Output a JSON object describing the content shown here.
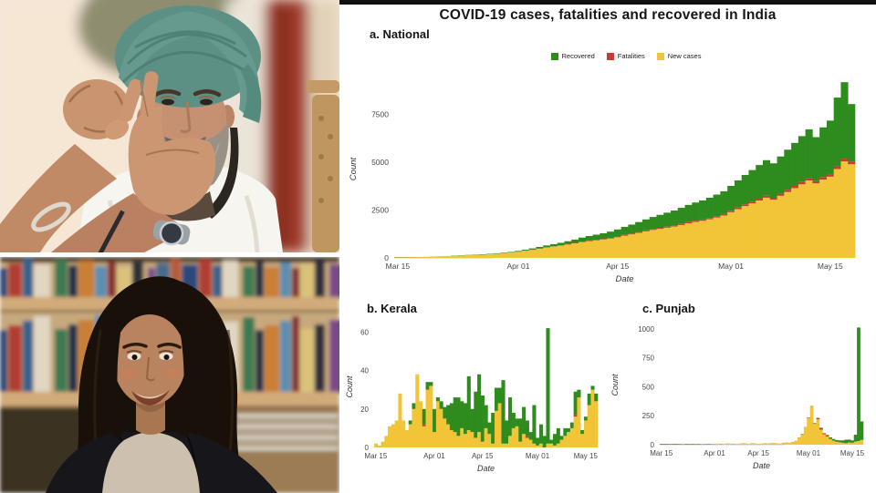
{
  "figure": {
    "title": "COVID-19 cases, fatalities and recovered in India",
    "xlabel": "Date",
    "ylabel": "Count",
    "legend": [
      {
        "label": "Recovered",
        "color": "#2e8b1e"
      },
      {
        "label": "Fatalities",
        "color": "#cc3b33"
      },
      {
        "label": "New cases",
        "color": "#f2c437"
      }
    ],
    "accent_colors": {
      "recovered_green": "#2e8b1e",
      "fatalities_red": "#cc3b33",
      "new_cases_yellow": "#f2c437",
      "top_bar_black": "#101010"
    }
  },
  "chart_data": [
    {
      "id": "national",
      "type": "bar",
      "stacked": true,
      "title": "a. National",
      "xlabel": "Date",
      "ylabel": "Count",
      "x_start": "Mar 15",
      "x_end": "May 18",
      "x_tick_labels": [
        "Mar 15",
        "Apr 01",
        "Apr 15",
        "May 01",
        "May 15"
      ],
      "x_tick_days": [
        0,
        17,
        31,
        47,
        61
      ],
      "ylim": [
        0,
        9300
      ],
      "yticks": [
        0,
        2500,
        5000,
        7500
      ],
      "grid": false,
      "series": [
        {
          "name": "New cases",
          "color": "#f2c437",
          "values": [
            25,
            30,
            35,
            45,
            60,
            75,
            90,
            100,
            110,
            120,
            135,
            150,
            165,
            185,
            210,
            240,
            270,
            310,
            360,
            420,
            480,
            540,
            590,
            640,
            700,
            760,
            830,
            880,
            920,
            960,
            1010,
            1080,
            1160,
            1230,
            1310,
            1390,
            1460,
            1520,
            1580,
            1640,
            1720,
            1810,
            1880,
            1940,
            2020,
            2110,
            2220,
            2390,
            2550,
            2710,
            2850,
            3000,
            3150,
            3050,
            3250,
            3450,
            3650,
            3850,
            4050,
            3900,
            4100,
            4250,
            4650,
            5050,
            4900
          ]
        },
        {
          "name": "Fatalities",
          "color": "#cc3b33",
          "values": [
            0,
            0,
            1,
            1,
            1,
            2,
            2,
            2,
            3,
            3,
            4,
            4,
            5,
            5,
            6,
            7,
            8,
            9,
            10,
            12,
            14,
            16,
            18,
            20,
            22,
            25,
            28,
            30,
            32,
            34,
            36,
            38,
            40,
            42,
            45,
            48,
            50,
            53,
            56,
            58,
            60,
            63,
            66,
            68,
            70,
            73,
            76,
            80,
            85,
            90,
            95,
            100,
            104,
            98,
            108,
            112,
            118,
            122,
            128,
            120,
            130,
            134,
            140,
            146,
            150
          ]
        },
        {
          "name": "Recovered",
          "color": "#2e8b1e",
          "values": [
            3,
            3,
            4,
            5,
            6,
            8,
            9,
            10,
            12,
            14,
            16,
            18,
            20,
            23,
            26,
            30,
            35,
            45,
            55,
            65,
            80,
            95,
            110,
            130,
            150,
            175,
            205,
            235,
            265,
            295,
            330,
            370,
            420,
            470,
            520,
            575,
            630,
            680,
            730,
            780,
            840,
            900,
            950,
            1000,
            1060,
            1130,
            1190,
            1300,
            1420,
            1540,
            1650,
            1760,
            1860,
            1800,
            1950,
            2100,
            2250,
            2400,
            2550,
            2300,
            2600,
            2800,
            3600,
            4000,
            3000
          ]
        }
      ]
    },
    {
      "id": "kerala",
      "type": "bar",
      "stacked": true,
      "title": "b. Kerala",
      "xlabel": "Date",
      "ylabel": "Count",
      "x_start": "Mar 15",
      "x_end": "May 18",
      "x_tick_labels": [
        "Mar 15",
        "Apr 01",
        "Apr 15",
        "May 01",
        "May 15"
      ],
      "x_tick_days": [
        0,
        17,
        31,
        47,
        61
      ],
      "ylim": [
        0,
        63
      ],
      "yticks": [
        0,
        20,
        40,
        60
      ],
      "grid": false,
      "series": [
        {
          "name": "New cases",
          "color": "#f2c437",
          "values": [
            2,
            1,
            3,
            6,
            11,
            12,
            14,
            28,
            14,
            9,
            12,
            20,
            38,
            24,
            11,
            30,
            32,
            8,
            24,
            20,
            15,
            12,
            9,
            8,
            6,
            10,
            7,
            9,
            8,
            5,
            8,
            3,
            10,
            7,
            2,
            19,
            23,
            2,
            2,
            6,
            10,
            11,
            3,
            7,
            5,
            4,
            2,
            1,
            2,
            0,
            2,
            2,
            1,
            2,
            4,
            6,
            8,
            10,
            16,
            26,
            7,
            14,
            22,
            30,
            24
          ]
        },
        {
          "name": "Fatalities",
          "color": "#cc3b33",
          "values": [
            0,
            0,
            0,
            0,
            0,
            0,
            0,
            0,
            0,
            0,
            0,
            0,
            0,
            0,
            1,
            0,
            0,
            0,
            0,
            0,
            0,
            0,
            0,
            0,
            0,
            0,
            0,
            0,
            0,
            0,
            0,
            0,
            0,
            0,
            0,
            0,
            0,
            0,
            0,
            0,
            0,
            0,
            0,
            0,
            1,
            0,
            0,
            0,
            0,
            0,
            0,
            0,
            0,
            0,
            0,
            0,
            0,
            0,
            1,
            0,
            0,
            0,
            0,
            0,
            0
          ]
        },
        {
          "name": "Recovered",
          "color": "#2e8b1e",
          "values": [
            0,
            0,
            0,
            0,
            0,
            0,
            0,
            0,
            0,
            0,
            2,
            3,
            0,
            0,
            8,
            4,
            2,
            12,
            2,
            4,
            6,
            10,
            14,
            18,
            20,
            14,
            16,
            28,
            12,
            24,
            30,
            24,
            12,
            6,
            16,
            12,
            8,
            33,
            12,
            20,
            8,
            4,
            12,
            14,
            8,
            4,
            20,
            4,
            10,
            6,
            60,
            2,
            6,
            8,
            2,
            4,
            2,
            3,
            12,
            4,
            2,
            2,
            6,
            2,
            4
          ]
        }
      ]
    },
    {
      "id": "punjab",
      "type": "bar",
      "stacked": true,
      "title": "c. Punjab",
      "xlabel": "Date",
      "ylabel": "Count",
      "x_start": "Mar 15",
      "x_end": "May 18",
      "x_tick_labels": [
        "Mar 15",
        "Apr 01",
        "Apr 15",
        "May 01",
        "May 15"
      ],
      "x_tick_days": [
        0,
        17,
        31,
        47,
        61
      ],
      "ylim": [
        0,
        1030
      ],
      "yticks": [
        0,
        250,
        500,
        750,
        1000
      ],
      "grid": false,
      "series": [
        {
          "name": "New cases",
          "color": "#f2c437",
          "values": [
            1,
            0,
            1,
            2,
            1,
            1,
            2,
            5,
            1,
            2,
            1,
            3,
            2,
            6,
            4,
            2,
            5,
            6,
            10,
            4,
            8,
            12,
            10,
            6,
            8,
            10,
            14,
            12,
            8,
            10,
            12,
            8,
            10,
            14,
            12,
            10,
            16,
            12,
            10,
            14,
            20,
            18,
            20,
            35,
            60,
            90,
            150,
            230,
            330,
            180,
            220,
            130,
            90,
            70,
            50,
            35,
            25,
            20,
            15,
            12,
            18,
            15,
            25,
            30,
            40
          ]
        },
        {
          "name": "Fatalities",
          "color": "#cc3b33",
          "values": [
            0,
            0,
            0,
            0,
            0,
            0,
            0,
            0,
            0,
            0,
            0,
            0,
            0,
            0,
            0,
            0,
            0,
            0,
            0,
            0,
            0,
            1,
            0,
            0,
            0,
            1,
            0,
            0,
            1,
            0,
            0,
            1,
            0,
            0,
            1,
            0,
            0,
            1,
            0,
            0,
            1,
            0,
            1,
            0,
            1,
            1,
            1,
            2,
            2,
            3,
            8,
            12,
            6,
            8,
            5,
            4,
            3,
            2,
            2,
            1,
            1,
            2,
            1,
            1,
            1
          ]
        },
        {
          "name": "Recovered",
          "color": "#2e8b1e",
          "values": [
            0,
            0,
            0,
            0,
            0,
            0,
            0,
            0,
            0,
            0,
            0,
            0,
            0,
            0,
            0,
            0,
            0,
            0,
            0,
            0,
            1,
            0,
            0,
            1,
            0,
            0,
            1,
            0,
            0,
            2,
            1,
            0,
            1,
            0,
            0,
            2,
            1,
            0,
            1,
            2,
            0,
            1,
            2,
            1,
            2,
            3,
            2,
            3,
            2,
            4,
            3,
            5,
            4,
            6,
            8,
            10,
            12,
            15,
            20,
            30,
            25,
            20,
            60,
            980,
            160
          ]
        }
      ]
    }
  ],
  "photos": {
    "top": {
      "description": "Elderly man wearing a teal turban and white shirt gesturing with both hands"
    },
    "bottom": {
      "description": "Smiling woman with long dark hair in a black blazer in front of bookshelves"
    }
  }
}
